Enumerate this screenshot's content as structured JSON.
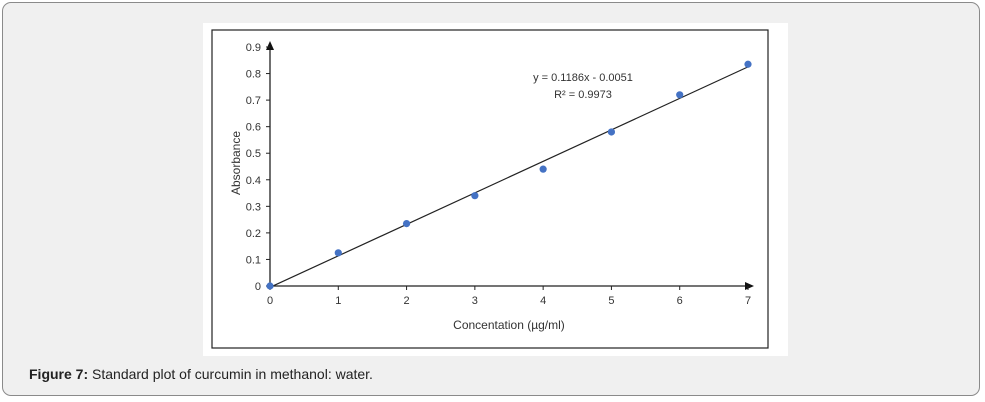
{
  "caption": {
    "label": "Figure 7:",
    "text": " Standard plot of curcumin in methanol: water."
  },
  "chart_data": {
    "type": "scatter",
    "xlabel": "Concentation (µg/ml)",
    "ylabel": "Absorbance",
    "xlim": [
      0,
      7
    ],
    "ylim": [
      0,
      0.9
    ],
    "x_ticks": [
      "0",
      "1",
      "2",
      "3",
      "4",
      "5",
      "6",
      "7"
    ],
    "y_ticks": [
      "0",
      "0.1",
      "0.2",
      "0.3",
      "0.4",
      "0.5",
      "0.6",
      "0.7",
      "0.8",
      "0.9"
    ],
    "x": [
      0,
      1,
      2,
      3,
      4,
      5,
      6,
      7
    ],
    "y": [
      0,
      0.125,
      0.235,
      0.34,
      0.44,
      0.58,
      0.72,
      0.835
    ],
    "trendline": {
      "slope": 0.1186,
      "intercept": -0.0051,
      "equation": "y = 0.1186x - 0.0051",
      "r2": "R² = 0.9973"
    },
    "grid": false,
    "marker_color": "#4472c4"
  }
}
